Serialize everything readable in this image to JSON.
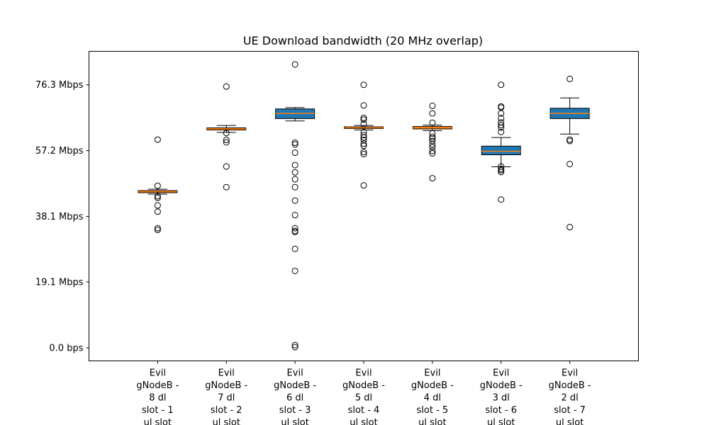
{
  "chart_data": {
    "type": "box",
    "title": "UE Download bandwidth (20 MHz overlap)",
    "ylim": [
      -3.8,
      86.0
    ],
    "grid": false,
    "y_ticks": [
      {
        "value": 0.0,
        "label": "0.0 bps"
      },
      {
        "value": 19.1,
        "label": "19.1 Mbps"
      },
      {
        "value": 38.1,
        "label": "38.1 Mbps"
      },
      {
        "value": 57.2,
        "label": "57.2 Mbps"
      },
      {
        "value": 76.3,
        "label": "76.3 Mbps"
      }
    ],
    "categories": [
      [
        "Evil",
        "gNodeB -",
        "8 dl",
        "slot - 1",
        "ul slot"
      ],
      [
        "Evil",
        "gNodeB -",
        "7 dl",
        "slot - 2",
        "ul slot"
      ],
      [
        "Evil",
        "gNodeB -",
        "6 dl",
        "slot - 3",
        "ul slot"
      ],
      [
        "Evil",
        "gNodeB -",
        "5 dl",
        "slot - 4",
        "ul slot"
      ],
      [
        "Evil",
        "gNodeB -",
        "4 dl",
        "slot - 5",
        "ul slot"
      ],
      [
        "Evil",
        "gNodeB -",
        "3 dl",
        "slot - 6",
        "ul slot"
      ],
      [
        "Evil",
        "gNodeB -",
        "2 dl",
        "slot - 7",
        "ul slot"
      ]
    ],
    "boxes": [
      {
        "whisker_low": 44.6,
        "q1": 45.0,
        "median": 45.3,
        "q3": 45.6,
        "whisker_high": 46.0,
        "outliers": [
          60.4,
          47.0,
          44.0,
          43.5,
          41.3,
          39.5,
          34.7,
          34.2
        ]
      },
      {
        "whisker_low": 62.5,
        "q1": 63.2,
        "median": 63.5,
        "q3": 63.8,
        "whisker_high": 64.5,
        "outliers": [
          75.8,
          62.3,
          60.3,
          59.6,
          52.6,
          46.6
        ]
      },
      {
        "whisker_low": 65.8,
        "q1": 66.5,
        "median": 68.0,
        "q3": 69.3,
        "whisker_high": 69.7,
        "outliers": [
          82.2,
          59.5,
          59.0,
          56.6,
          53.0,
          50.9,
          48.9,
          46.6,
          42.7,
          38.5,
          34.7,
          33.9,
          33.6,
          28.7,
          22.3,
          0.8,
          0.2
        ]
      },
      {
        "whisker_low": 63.2,
        "q1": 63.6,
        "median": 63.8,
        "q3": 64.1,
        "whisker_high": 64.5,
        "outliers": [
          76.3,
          70.3,
          66.7,
          66.2,
          64.9,
          62.6,
          61.7,
          61.0,
          60.3,
          59.2,
          58.6,
          56.8,
          56.2,
          47.1
        ]
      },
      {
        "whisker_low": 63.0,
        "q1": 63.5,
        "median": 63.8,
        "q3": 64.2,
        "whisker_high": 64.6,
        "outliers": [
          70.2,
          68.0,
          65.3,
          62.2,
          61.2,
          60.7,
          60.0,
          59.0,
          58.2,
          57.1,
          56.4,
          49.2
        ]
      },
      {
        "whisker_low": 52.5,
        "q1": 56.0,
        "median": 57.0,
        "q3": 58.5,
        "whisker_high": 61.0,
        "outliers": [
          76.3,
          70.0,
          69.7,
          68.0,
          66.6,
          65.4,
          64.6,
          63.9,
          62.6,
          52.6,
          51.9,
          51.5,
          51.0,
          43.0
        ]
      },
      {
        "whisker_low": 62.0,
        "q1": 66.5,
        "median": 68.0,
        "q3": 69.5,
        "whisker_high": 72.5,
        "outliers": [
          78.0,
          60.4,
          60.0,
          53.3,
          35.0
        ]
      }
    ],
    "box_colors": [
      "#ff7f0e",
      "#ff7f0e",
      "#1f77b4",
      "#ff7f0e",
      "#ff7f0e",
      "#1f77b4",
      "#1f77b4"
    ],
    "median_color": "#ff7f0e"
  }
}
